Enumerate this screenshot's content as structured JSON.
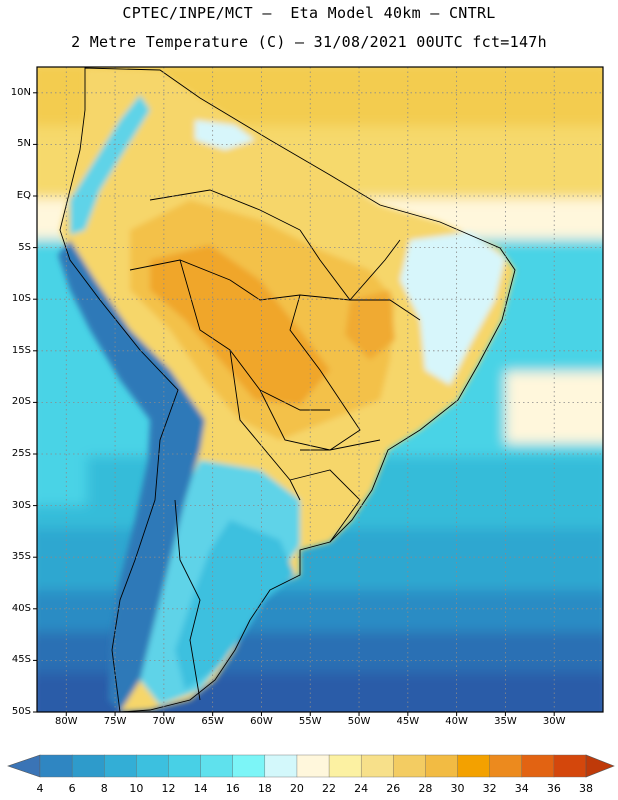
{
  "header": {
    "line1": "CPTEC/INPE/MCT –  Eta Model 40km – CNTRL",
    "line2": "2 Metre Temperature (C) – 31/08/2021 00UTC fct=147h"
  },
  "map": {
    "lat_labels": [
      "10N",
      "5N",
      "EQ",
      "5S",
      "10S",
      "15S",
      "20S",
      "25S",
      "30S",
      "35S",
      "40S",
      "45S",
      "50S"
    ],
    "lon_labels": [
      "80W",
      "75W",
      "70W",
      "65W",
      "60W",
      "55W",
      "50W",
      "45W",
      "40W",
      "35W",
      "30W"
    ],
    "ocean_band_colors": [
      "#f3cc50",
      "#f6d96c",
      "#fff7dc",
      "#48d3e6",
      "#35bcd9",
      "#2ea7d0",
      "#2b8cc4",
      "#2a70b4",
      "#2b5ba8"
    ],
    "land_colors": {
      "hot": "#f0a830",
      "warm": "#f3c350",
      "mild": "#f9e08a",
      "cool": "#d7f6fb",
      "andes": "#2f79b8",
      "patagonia": "#5fd0e6"
    }
  },
  "colorbar": {
    "labels": [
      "4",
      "6",
      "8",
      "10",
      "12",
      "14",
      "16",
      "18",
      "20",
      "22",
      "24",
      "26",
      "28",
      "30",
      "32",
      "34",
      "36",
      "38"
    ],
    "colors": [
      "#3a74b6",
      "#2f86c2",
      "#2e9bcb",
      "#33aed6",
      "#3cc0df",
      "#48d0e6",
      "#5fe1ed",
      "#7cf5f7",
      "#d3f8fb",
      "#fff7dc",
      "#fcf1a2",
      "#f7e08a",
      "#f3cc62",
      "#f2bb43",
      "#f3a100",
      "#ec8a1e",
      "#e26312",
      "#d4470c",
      "#bf3a09"
    ]
  }
}
